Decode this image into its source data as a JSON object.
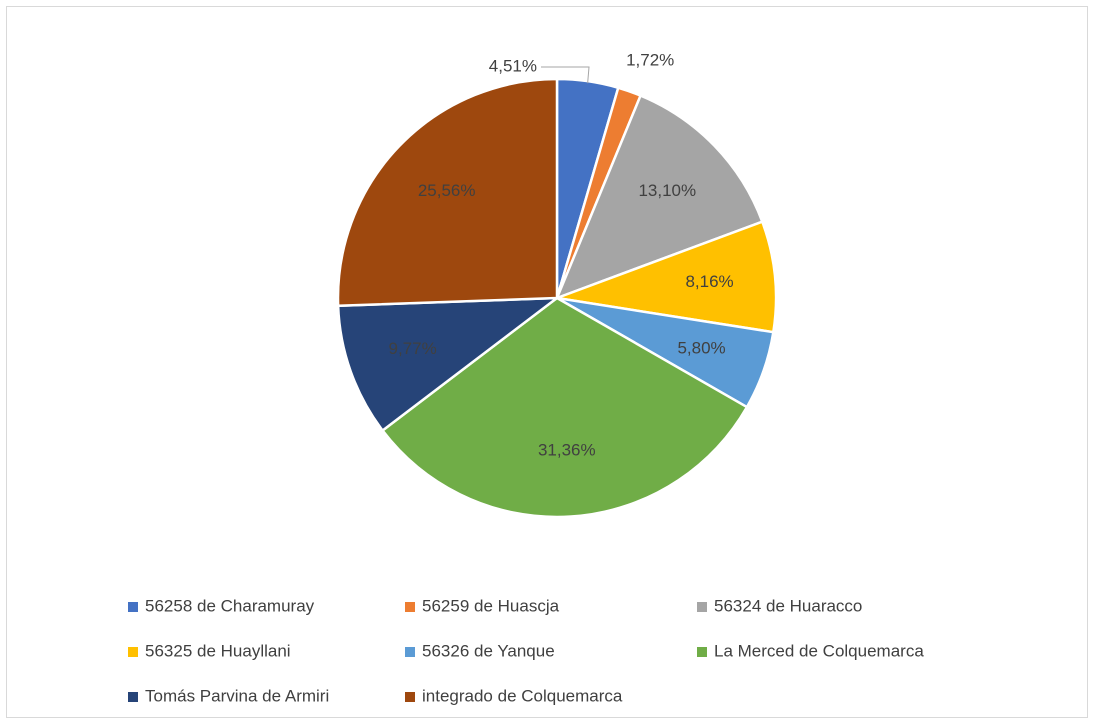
{
  "chart_data": {
    "type": "pie",
    "categories": [
      "56258 de Charamuray",
      "56259 de Huascja",
      "56324 de Huaracco",
      "56325 de Huayllani",
      "56326 de Yanque",
      "La Merced de Colquemarca",
      "Tomás Parvina de Armiri",
      "integrado de Colquemarca"
    ],
    "values": [
      4.51,
      1.72,
      13.1,
      8.16,
      5.8,
      31.36,
      9.77,
      25.56
    ],
    "value_labels": [
      "4,51%",
      "1,72%",
      "13,10%",
      "8,16%",
      "5,80%",
      "31,36%",
      "9,77%",
      "25,56%"
    ],
    "colors": [
      "#4472c4",
      "#ed7d31",
      "#a5a5a5",
      "#ffc000",
      "#5b9bd5",
      "#70ad47",
      "#264478",
      "#9e480e"
    ],
    "legend": "bottom"
  }
}
